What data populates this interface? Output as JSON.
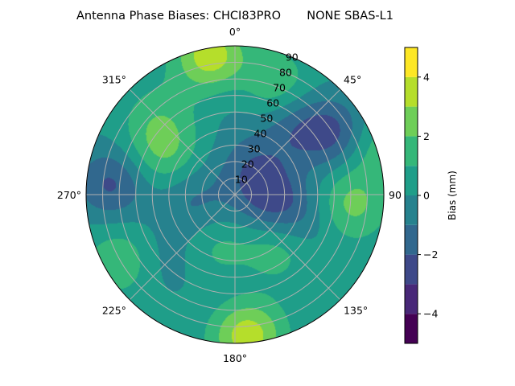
{
  "chart_data": {
    "type": "heatmap",
    "title": "Antenna Phase Biases: CHCI83PRO       NONE SBAS-L1",
    "projection": "polar",
    "zenith_ticks": [
      10,
      20,
      30,
      40,
      50,
      60,
      70,
      80,
      90
    ],
    "zenith_tick_labels": [
      "10",
      "20",
      "30",
      "40",
      "50",
      "60",
      "70",
      "80",
      "90"
    ],
    "azimuth_ticks": [
      0,
      45,
      90,
      135,
      180,
      225,
      270,
      315
    ],
    "azimuth_tick_labels": [
      "0°",
      "45°",
      "90",
      "135°",
      "180°",
      "225°",
      "270°",
      "315°"
    ],
    "grid": true,
    "colorbar": {
      "label": "Bias (mm)",
      "range": [
        -5,
        5
      ],
      "levels": [
        -5,
        -4,
        -3,
        -2,
        -1,
        0,
        1,
        2,
        3,
        4,
        5
      ],
      "colors": [
        "#440154",
        "#482878",
        "#3e4989",
        "#31688e",
        "#26828e",
        "#1f9e89",
        "#35b779",
        "#6ece58",
        "#b5de2b",
        "#fde725"
      ],
      "ticks": [
        -4,
        -2,
        0,
        2,
        4
      ],
      "tick_labels": [
        "−4",
        "−2",
        "0",
        "2",
        "4"
      ]
    },
    "blobs": [
      {
        "az": 350,
        "zen": 85,
        "value": 3.5
      },
      {
        "az": 175,
        "zen": 85,
        "value": 3.5
      },
      {
        "az": 20,
        "zen": 70,
        "value": 1.8
      },
      {
        "az": 60,
        "zen": 72,
        "value": -2.6
      },
      {
        "az": 42,
        "zen": 55,
        "value": -1.8
      },
      {
        "az": 30,
        "zen": 20,
        "value": -1.6
      },
      {
        "az": 300,
        "zen": 50,
        "value": 1.8
      },
      {
        "az": 315,
        "zen": 65,
        "value": 1.2
      },
      {
        "az": 275,
        "zen": 75,
        "value": -2.4
      },
      {
        "az": 240,
        "zen": 80,
        "value": 1.6
      },
      {
        "az": 200,
        "zen": 35,
        "value": 1.2
      },
      {
        "az": 140,
        "zen": 40,
        "value": 1.6
      },
      {
        "az": 110,
        "zen": 45,
        "value": -1.2
      },
      {
        "az": 95,
        "zen": 70,
        "value": 2.2
      },
      {
        "az": 70,
        "zen": 88,
        "value": 1.8
      },
      {
        "az": 100,
        "zen": 22,
        "value": -2.4
      },
      {
        "az": 260,
        "zen": 25,
        "value": -1.4
      },
      {
        "az": 0,
        "zen": 60,
        "value": -0.6
      },
      {
        "az": 180,
        "zen": 60,
        "value": -0.4
      },
      {
        "az": 225,
        "zen": 55,
        "value": -0.8
      }
    ],
    "base_value": 0.2
  }
}
